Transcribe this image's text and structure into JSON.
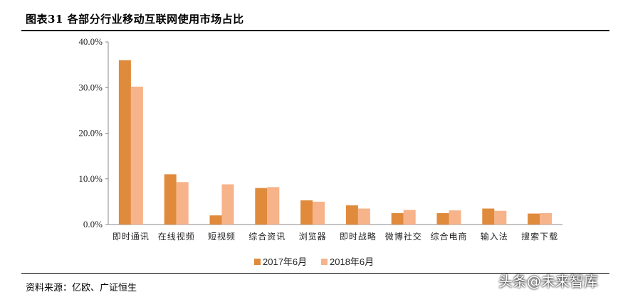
{
  "header": {
    "title": "图表31 各部分行业移动互联网使用市场占比"
  },
  "source": "资料来源：亿欧、广证恒生",
  "watermark": "头条@未来智库",
  "chart_data": {
    "type": "bar",
    "title": "",
    "xlabel": "",
    "ylabel": "",
    "ylim": [
      0,
      40
    ],
    "yticks": [
      "0.0%",
      "10.0%",
      "20.0%",
      "30.0%",
      "40.0%"
    ],
    "categories": [
      "即时通讯",
      "在线视频",
      "短视频",
      "综合资讯",
      "浏览器",
      "即时战略",
      "微博社交",
      "综合电商",
      "输入法",
      "搜索下载"
    ],
    "series": [
      {
        "name": "2017年6月",
        "color": "#e08a3c",
        "values": [
          36.0,
          11.0,
          2.0,
          8.0,
          5.3,
          4.2,
          2.5,
          2.5,
          3.5,
          2.4
        ]
      },
      {
        "name": "2018年6月",
        "color": "#f7b38a",
        "values": [
          30.2,
          9.3,
          8.8,
          8.2,
          5.0,
          3.5,
          3.2,
          3.1,
          3.0,
          2.5
        ]
      }
    ],
    "grid": false,
    "legend": "bottom"
  }
}
